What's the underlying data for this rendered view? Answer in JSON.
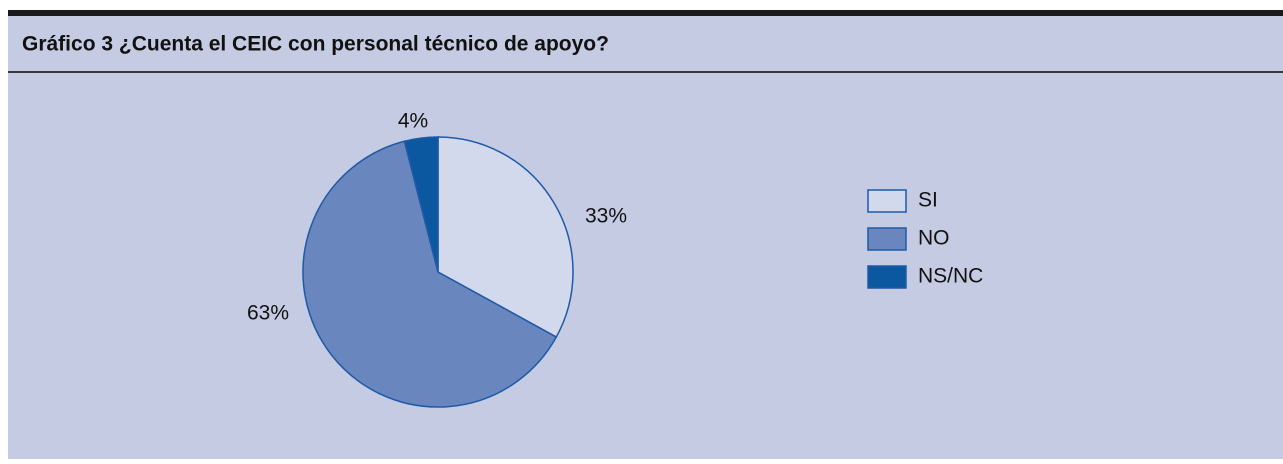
{
  "chart_data": {
    "type": "pie",
    "title": "Gráfico 3 ¿Cuenta el CEIC con personal técnico de apoyo?",
    "categories": [
      "SI",
      "NO",
      "NS/NC"
    ],
    "values": [
      33,
      63,
      4
    ],
    "value_labels": [
      "33%",
      "63%",
      "4%"
    ],
    "colors": [
      "#d3d9ed",
      "#6a86bf",
      "#0b57a0"
    ],
    "legend": "right"
  }
}
